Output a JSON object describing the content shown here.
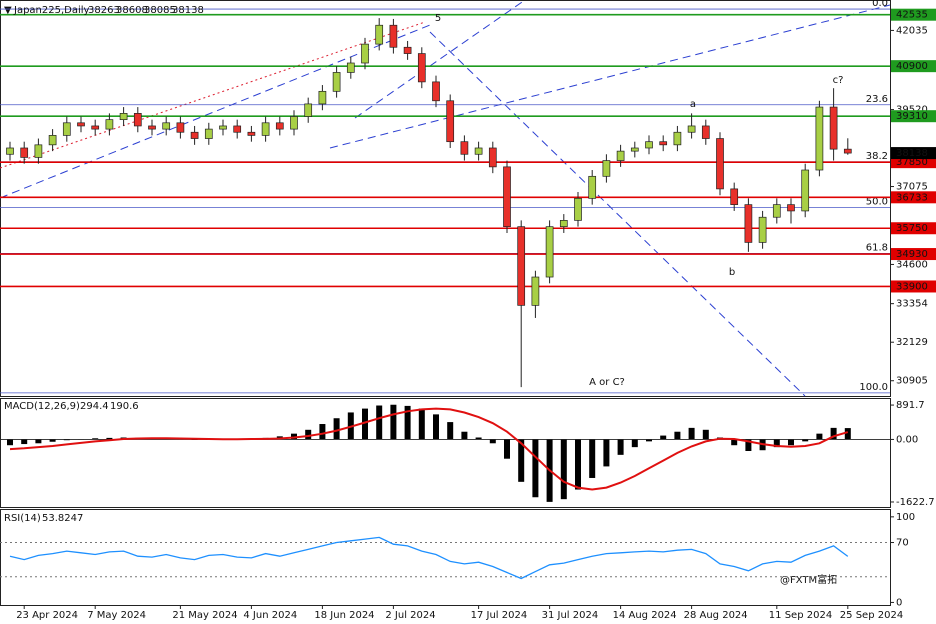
{
  "chart_data": [
    {
      "type": "candlestick",
      "title": "Japan225,Daily",
      "categories": [
        null,
        "23 Apr 2024",
        null,
        null,
        null,
        null,
        "7 May 2024",
        null,
        null,
        null,
        null,
        null,
        "21 May 2024",
        null,
        null,
        null,
        null,
        "4 Jun 2024",
        null,
        null,
        null,
        null,
        "18 Jun 2024",
        null,
        null,
        null,
        null,
        "2 Jul 2024",
        null,
        null,
        null,
        null,
        null,
        "17 Jul 2024",
        null,
        null,
        null,
        null,
        "31 Jul 2024",
        null,
        null,
        null,
        null,
        "14 Aug 2024",
        null,
        null,
        null,
        null,
        "28 Aug 2024",
        null,
        null,
        null,
        null,
        null,
        "11 Sep 2024",
        null,
        null,
        null,
        null,
        "25 Sep 2024"
      ],
      "open": [
        38100,
        38300,
        38000,
        38400,
        38700,
        39100,
        39000,
        38900,
        39200,
        39400,
        39000,
        38900,
        39100,
        38800,
        38600,
        38900,
        39000,
        38800,
        38700,
        39100,
        38900,
        39300,
        39700,
        40100,
        40700,
        41000,
        41600,
        42200,
        41500,
        41300,
        40400,
        39800,
        38500,
        38100,
        38300,
        37700,
        35800,
        33300,
        34200,
        35800,
        36000,
        36700,
        37400,
        37900,
        38200,
        38300,
        38500,
        38400,
        38800,
        39000,
        38600,
        37000,
        36500,
        35300,
        36100,
        36500,
        36300,
        37600,
        39600,
        38263
      ],
      "high": [
        38500,
        38500,
        38600,
        38900,
        39300,
        39300,
        39200,
        39400,
        39600,
        39600,
        39200,
        39300,
        39300,
        39000,
        39100,
        39200,
        39200,
        39000,
        39300,
        39300,
        39500,
        39900,
        40300,
        40900,
        41200,
        41800,
        42426,
        42400,
        41700,
        41500,
        40600,
        40000,
        38700,
        38500,
        38500,
        37900,
        36000,
        34400,
        36000,
        36200,
        36900,
        37600,
        38100,
        38400,
        38500,
        38700,
        38700,
        39000,
        39400,
        39200,
        38800,
        37200,
        36700,
        36300,
        36700,
        36700,
        37800,
        39800,
        40200,
        38608
      ],
      "low": [
        37900,
        37800,
        37800,
        38200,
        38500,
        38800,
        38700,
        38700,
        39000,
        38800,
        38700,
        38700,
        38600,
        38400,
        38400,
        38700,
        38600,
        38500,
        38500,
        38700,
        38700,
        39100,
        39500,
        39900,
        40500,
        40800,
        41400,
        41300,
        41100,
        40200,
        39600,
        38300,
        37900,
        37900,
        37500,
        35600,
        30700,
        32900,
        34000,
        35600,
        35800,
        36500,
        37200,
        37700,
        38000,
        38100,
        38200,
        38200,
        38600,
        38400,
        36800,
        36300,
        35000,
        35100,
        35900,
        35900,
        36100,
        37400,
        37900,
        38085
      ],
      "close": [
        38300,
        38000,
        38400,
        38700,
        39100,
        39000,
        38900,
        39200,
        39400,
        39000,
        38900,
        39100,
        38800,
        38600,
        38900,
        39000,
        38800,
        38700,
        39100,
        38900,
        39300,
        39700,
        40100,
        40700,
        41000,
        41600,
        42200,
        41500,
        41300,
        40400,
        39800,
        38500,
        38100,
        38300,
        37700,
        35800,
        33300,
        34200,
        35800,
        36000,
        36700,
        37400,
        37900,
        38200,
        38300,
        38500,
        38400,
        38800,
        39000,
        38600,
        37000,
        36500,
        35300,
        36100,
        36500,
        36300,
        37600,
        39600,
        38263,
        38138
      ],
      "up_color": "#a8cf45",
      "down_color": "#e8302a",
      "ylim": [
        30420,
        42970
      ],
      "yticks": [
        42035,
        39520,
        37075,
        34600,
        33354,
        32129,
        30905
      ],
      "levels": [
        {
          "value": 42535,
          "color": "#1f9b1f"
        },
        {
          "value": 40900,
          "color": "#1f9b1f"
        },
        {
          "value": 39310,
          "color": "#1f9b1f"
        },
        {
          "value": 37850,
          "color": "#e00000"
        },
        {
          "value": 36733,
          "color": "#e00000"
        },
        {
          "value": 35750,
          "color": "#e00000"
        },
        {
          "value": 34930,
          "color": "#e00000"
        },
        {
          "value": 33900,
          "color": "#e00000"
        }
      ],
      "fib_levels": [
        {
          "value": 42714,
          "label": "0.0"
        },
        {
          "value": 39673,
          "label": "23.6"
        },
        {
          "value": 37860,
          "label": "38.2"
        },
        {
          "value": 36406,
          "label": "50.0"
        },
        {
          "value": 34950,
          "label": "61.8"
        },
        {
          "value": 30520,
          "label": "100.0"
        }
      ],
      "annotations": [
        "5",
        "a",
        "b",
        "c?",
        "A or C?"
      ],
      "watermark": "@FXTM富拓"
    },
    {
      "type": "macd",
      "title": "MACD(12,26,9)",
      "values": [
        -150,
        -120,
        -100,
        -60,
        -20,
        10,
        30,
        40,
        50,
        40,
        30,
        20,
        10,
        0,
        -10,
        0,
        10,
        20,
        40,
        80,
        150,
        250,
        400,
        550,
        700,
        800,
        880,
        900,
        870,
        800,
        650,
        450,
        200,
        50,
        -100,
        -500,
        -1100,
        -1500,
        -1620,
        -1550,
        -1300,
        -1000,
        -700,
        -400,
        -200,
        -50,
        100,
        200,
        300,
        250,
        50,
        -150,
        -300,
        -280,
        -200,
        -150,
        -50,
        150,
        300,
        294.4
      ],
      "signal": [
        -250,
        -230,
        -200,
        -170,
        -130,
        -90,
        -50,
        -20,
        10,
        25,
        30,
        30,
        25,
        20,
        10,
        5,
        5,
        10,
        15,
        25,
        50,
        90,
        150,
        230,
        330,
        440,
        550,
        650,
        730,
        780,
        800,
        780,
        700,
        580,
        420,
        200,
        -100,
        -450,
        -800,
        -1100,
        -1250,
        -1300,
        -1250,
        -1120,
        -950,
        -750,
        -550,
        -350,
        -180,
        -50,
        20,
        10,
        -50,
        -120,
        -170,
        -190,
        -170,
        -100,
        80,
        190.6
      ],
      "color": "#000000",
      "signal_color": "#e01010",
      "ylim": [
        -1753,
        1049
      ],
      "yticks": [
        891.7,
        {
          "value": 0,
          "label": "0.00"
        },
        -1622.7
      ]
    },
    {
      "type": "rsi",
      "title": "RSI(14)",
      "values": [
        54,
        50,
        55,
        57,
        60,
        58,
        56,
        59,
        60,
        54,
        53,
        56,
        52,
        50,
        55,
        56,
        53,
        52,
        57,
        54,
        58,
        62,
        66,
        70,
        72,
        74,
        76,
        68,
        66,
        60,
        56,
        48,
        45,
        47,
        42,
        35,
        28,
        36,
        44,
        46,
        50,
        54,
        57,
        58,
        59,
        60,
        59,
        61,
        62,
        57,
        45,
        42,
        37,
        45,
        48,
        47,
        55,
        60,
        66,
        53.8247
      ],
      "color": "#1e90ff",
      "ylim": [
        -3,
        108
      ],
      "yticks": [
        100,
        70,
        0
      ],
      "levels": [
        70,
        30
      ]
    }
  ]
}
